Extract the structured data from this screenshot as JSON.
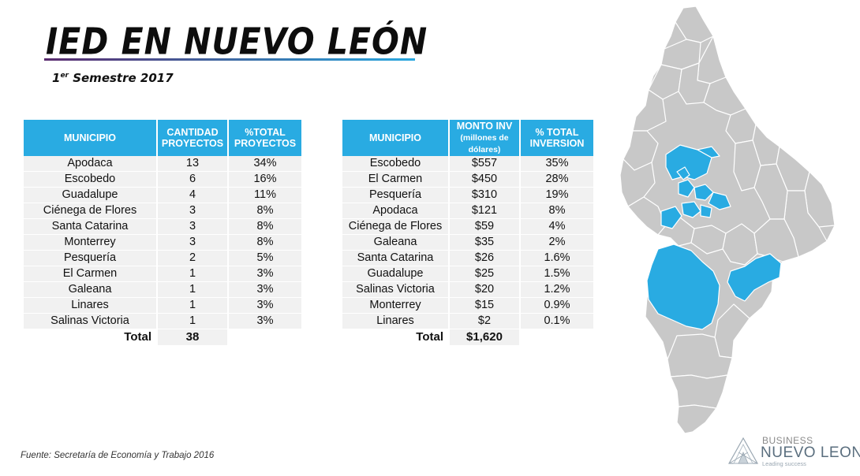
{
  "header": {
    "title": "IED EN NUEVO LEÓN",
    "subtitle_sup": "er",
    "subtitle_num": "1",
    "subtitle_rest": " Semestre 2017"
  },
  "table_projects": {
    "headers": [
      "MUNICIPIO",
      "CANTIDAD PROYECTOS",
      "%TOTAL PROYECTOS"
    ],
    "rows": [
      [
        "Apodaca",
        "13",
        "34%"
      ],
      [
        "Escobedo",
        "6",
        "16%"
      ],
      [
        "Guadalupe",
        "4",
        "11%"
      ],
      [
        "Ciénega de Flores",
        "3",
        "8%"
      ],
      [
        "Santa Catarina",
        "3",
        "8%"
      ],
      [
        "Monterrey",
        "3",
        "8%"
      ],
      [
        "Pesquería",
        "2",
        "5%"
      ],
      [
        "El Carmen",
        "1",
        "3%"
      ],
      [
        "Galeana",
        "1",
        "3%"
      ],
      [
        "Linares",
        "1",
        "3%"
      ],
      [
        "Salinas Victoria",
        "1",
        "3%"
      ]
    ],
    "total_label": "Total",
    "total_value": "38"
  },
  "table_investment": {
    "headers": [
      "MUNICIPIO",
      "MONTO INV",
      "% TOTAL INVERSION"
    ],
    "header_sub": "(millones de dólares)",
    "rows": [
      [
        "Escobedo",
        "$557",
        "35%"
      ],
      [
        "El Carmen",
        "$450",
        "28%"
      ],
      [
        "Pesquería",
        "$310",
        "19%"
      ],
      [
        "Apodaca",
        "$121",
        "8%"
      ],
      [
        "Ciénega de Flores",
        "$59",
        "4%"
      ],
      [
        "Galeana",
        "$35",
        "2%"
      ],
      [
        "Santa Catarina",
        "$26",
        "1.6%"
      ],
      [
        "Guadalupe",
        "$25",
        "1.5%"
      ],
      [
        "Salinas Victoria",
        "$20",
        "1.2%"
      ],
      [
        "Monterrey",
        "$15",
        "0.9%"
      ],
      [
        "Linares",
        "$2",
        "0.1%"
      ]
    ],
    "total_label": "Total",
    "total_value": "$1,620"
  },
  "source": "Fuente: Secretaría de Economía y Trabajo 2016",
  "logo": {
    "line1": "BUSINESS",
    "line2": "NUEVO LEON",
    "tagline": "Leading success"
  },
  "colors": {
    "accent": "#29abe2",
    "map_base": "#c8c8c8",
    "map_highlight": "#29abe2"
  }
}
